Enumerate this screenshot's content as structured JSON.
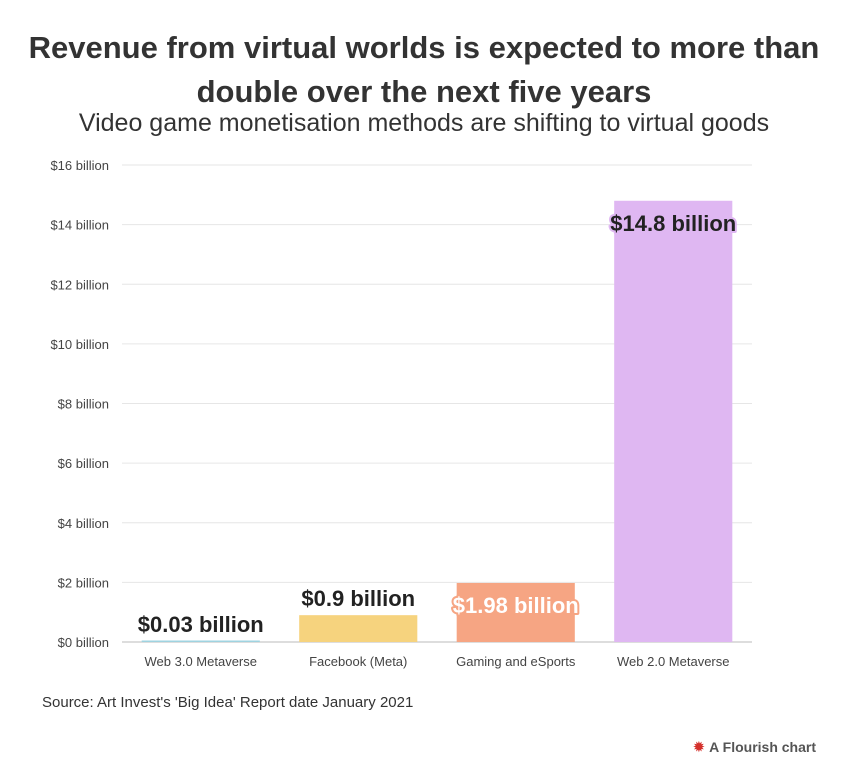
{
  "title": "Revenue from virtual worlds is expected to more than double over the next five years",
  "subtitle": "Video game monetisation methods are shifting to virtual goods",
  "source": "Source: Art Invest's 'Big Idea' Report date January 2021",
  "brand": {
    "label": "A Flourish chart",
    "icon": "flourish-star-icon",
    "icon_color": "#d4302b"
  },
  "chart_data": {
    "type": "bar",
    "title": "Revenue from virtual worlds is expected to more than double over the next five years",
    "categories": [
      "Web 3.0 Metaverse",
      "Facebook (Meta)",
      "Gaming and eSports",
      "Web 2.0 Metaverse"
    ],
    "values": [
      0.03,
      0.9,
      1.98,
      14.8
    ],
    "value_labels": [
      "$0.03 billion",
      "$0.9 billion",
      "$1.98 billion",
      "$14.8 billion"
    ],
    "colors": [
      "#9fd3e0",
      "#f6d37e",
      "#f6a583",
      "#dfb7f2"
    ],
    "yticks": [
      0,
      2,
      4,
      6,
      8,
      10,
      12,
      14,
      16
    ],
    "ytick_labels": [
      "$0 billion",
      "$2 billion",
      "$4 billion",
      "$6 billion",
      "$8 billion",
      "$10 billion",
      "$12 billion",
      "$14 billion",
      "$16 billion"
    ],
    "ylim": [
      0,
      16
    ],
    "xlabel": "",
    "ylabel": "",
    "grid": true
  }
}
